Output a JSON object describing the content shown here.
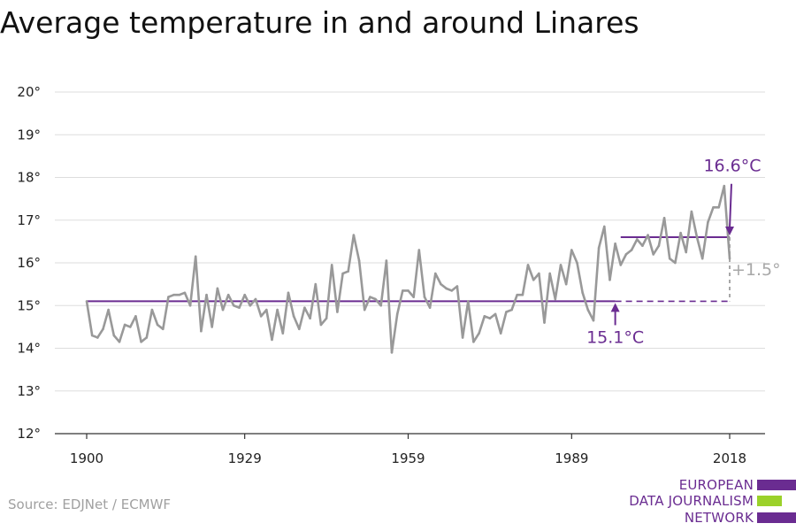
{
  "title": "Average temperature in and around Linares",
  "source": "Source: EDJNet / ECMWF",
  "logo": {
    "lines": [
      "EUROPEAN",
      "DATA JOURNALISM",
      "NETWORK"
    ],
    "bar_colors": [
      "#6a2c91",
      "#9bd12a",
      "#6a2c91"
    ]
  },
  "colors": {
    "series": "#999999",
    "baseline": "#6a2c91",
    "recent": "#6a2c91",
    "diff": "#a8a8a8",
    "grid": "#dddddd",
    "axis": "#333333"
  },
  "chart_data": {
    "type": "line",
    "ylim": [
      12,
      20
    ],
    "xlim": [
      1900,
      2018
    ],
    "yticks": [
      12,
      13,
      14,
      15,
      16,
      17,
      18,
      19,
      20
    ],
    "ytick_labels": [
      "12°",
      "13°",
      "14°",
      "15°",
      "16°",
      "17°",
      "18°",
      "19°",
      "20°"
    ],
    "xticks": [
      1900,
      1929,
      1959,
      1989,
      2018
    ],
    "xtick_labels": [
      "1900",
      "1929",
      "1959",
      "1989",
      "2018"
    ],
    "grid": true,
    "series": [
      {
        "x": [
          1900,
          1901,
          1902,
          1903,
          1904,
          1905,
          1906,
          1907,
          1908,
          1909,
          1910,
          1911,
          1912,
          1913,
          1914,
          1915,
          1916,
          1917,
          1918,
          1919,
          1920,
          1921,
          1922,
          1923,
          1924,
          1925,
          1926,
          1927,
          1928,
          1929,
          1930,
          1931,
          1932,
          1933,
          1934,
          1935,
          1936,
          1937,
          1938,
          1939,
          1940,
          1941,
          1942,
          1943,
          1944,
          1945,
          1946,
          1947,
          1948,
          1949,
          1950,
          1951,
          1952,
          1953,
          1954,
          1955,
          1956,
          1957,
          1958,
          1959,
          1960,
          1961,
          1962,
          1963,
          1964,
          1965,
          1966,
          1967,
          1968,
          1969,
          1970,
          1971,
          1972,
          1973,
          1974,
          1975,
          1976,
          1977,
          1978,
          1979,
          1980,
          1981,
          1982,
          1983,
          1984,
          1985,
          1986,
          1987,
          1988,
          1989,
          1990,
          1991,
          1992,
          1993,
          1994,
          1995,
          1996,
          1997,
          1998,
          1999,
          2000,
          2001,
          2002,
          2003,
          2004,
          2005,
          2006,
          2007,
          2008,
          2009,
          2010,
          2011,
          2012,
          2013,
          2014,
          2015,
          2016,
          2017,
          2018
        ],
        "values": [
          15.1,
          14.3,
          14.25,
          14.45,
          14.9,
          14.3,
          14.15,
          14.55,
          14.5,
          14.75,
          14.15,
          14.25,
          14.9,
          14.55,
          14.45,
          15.2,
          15.25,
          15.25,
          15.3,
          15.0,
          16.15,
          14.4,
          15.25,
          14.5,
          15.4,
          14.9,
          15.25,
          15.0,
          14.95,
          15.25,
          15.0,
          15.15,
          14.75,
          14.9,
          14.2,
          14.9,
          14.35,
          15.3,
          14.75,
          14.45,
          14.95,
          14.7,
          15.5,
          14.55,
          14.7,
          15.95,
          14.85,
          15.75,
          15.8,
          16.65,
          16.05,
          14.9,
          15.2,
          15.15,
          15.0,
          16.05,
          13.9,
          14.8,
          15.35,
          15.35,
          15.2,
          16.3,
          15.2,
          14.95,
          15.75,
          15.5,
          15.4,
          15.35,
          15.45,
          14.25,
          15.1,
          14.15,
          14.35,
          14.75,
          14.7,
          14.8,
          14.35,
          14.85,
          14.9,
          15.25,
          15.25,
          15.95,
          15.6,
          15.75,
          14.6,
          15.75,
          15.15,
          15.95,
          15.5,
          16.3,
          16.0,
          15.3,
          14.9,
          14.65,
          16.35,
          16.85,
          15.6,
          16.45,
          15.95,
          16.2,
          16.3,
          16.55,
          16.4,
          16.65,
          16.2,
          16.4,
          17.05,
          16.1,
          16.0,
          16.7,
          16.25,
          17.2,
          16.6,
          16.1,
          16.95,
          17.3,
          17.3,
          17.8,
          16.1
        ]
      }
    ],
    "annotations": {
      "baseline_value": 15.1,
      "baseline_label": "15.1°C",
      "recent_value": 16.6,
      "recent_label": "16.6°C",
      "diff_label": "+1.5°"
    }
  }
}
